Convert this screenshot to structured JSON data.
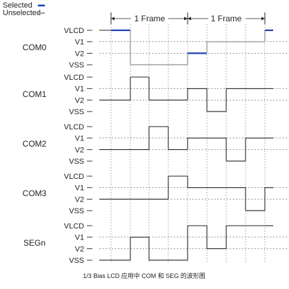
{
  "legend": {
    "selected": {
      "label": "Selected",
      "color": "#1a3fb5"
    },
    "unselected": {
      "label": "Unselected",
      "color": "#a8a8a8"
    }
  },
  "frame_labels": [
    "1 Frame",
    "1 Frame"
  ],
  "level_labels": [
    "VLCD",
    "V1",
    "V2",
    "VSS"
  ],
  "signals": [
    {
      "name": "COM0",
      "levels": [
        0,
        3
      ],
      "segments": [
        {
          "level": 0,
          "color": "selected"
        },
        {
          "level": 3,
          "color": "unselected"
        },
        {
          "level": 3,
          "color": "unselected"
        },
        {
          "level": 3,
          "color": "unselected"
        },
        {
          "level": 2,
          "color": "selected"
        },
        {
          "level": 1,
          "color": "unselected"
        },
        {
          "level": 1,
          "color": "unselected"
        },
        {
          "level": 1,
          "color": "unselected"
        },
        {
          "level": 0,
          "color": "selected"
        }
      ]
    },
    {
      "name": "COM1",
      "levels": [
        2,
        3
      ],
      "segments": [
        2,
        0,
        2,
        2,
        1,
        3,
        1,
        1,
        1
      ]
    },
    {
      "name": "COM2",
      "levels": [
        2,
        3
      ],
      "segments": [
        2,
        2,
        0,
        2,
        1,
        1,
        3,
        1,
        1
      ]
    },
    {
      "name": "COM3",
      "levels": [
        2,
        3
      ],
      "segments": [
        2,
        2,
        2,
        0,
        1,
        1,
        1,
        3,
        1
      ]
    },
    {
      "name": "SEGn",
      "levels": [
        0,
        3
      ],
      "segments": [
        3,
        1,
        3,
        3,
        0,
        2,
        0,
        0,
        0
      ]
    }
  ],
  "caption": "1/3 Bias LCD 应用中 COM 和 SEG 的波形图"
}
